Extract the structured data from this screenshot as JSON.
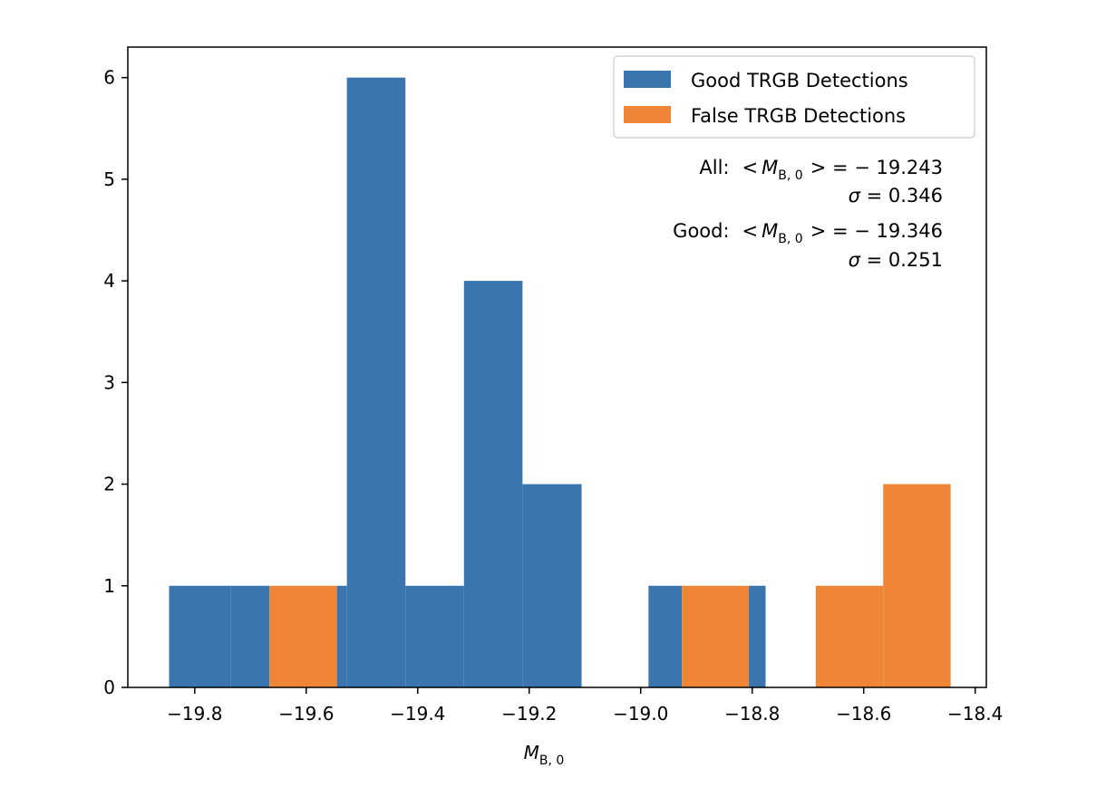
{
  "chart_data": {
    "type": "bar",
    "title": "",
    "xlabel": "M",
    "xlabel_subscript": "B, 0",
    "ylabel": "",
    "xlim": [
      -19.92,
      -18.38
    ],
    "ylim": [
      0,
      6.3
    ],
    "xticks": [
      -19.8,
      -19.6,
      -19.4,
      -19.2,
      -19.0,
      -18.8,
      -18.6,
      -18.4
    ],
    "xtick_labels": [
      "−19.8",
      "−19.6",
      "−19.4",
      "−19.2",
      "−19.0",
      "−18.8",
      "−18.6",
      "−18.4"
    ],
    "yticks": [
      0,
      1,
      2,
      3,
      4,
      5,
      6
    ],
    "ytick_labels": [
      "0",
      "1",
      "2",
      "3",
      "4",
      "5",
      "6"
    ],
    "legend_position": "top-right",
    "series": [
      {
        "name": "Good TRGB Detections",
        "color": "#3a75af",
        "bins": [
          {
            "x0": -19.846,
            "x1": -19.735,
            "value": 1
          },
          {
            "x0": -19.735,
            "x1": -19.666,
            "value": 1
          },
          {
            "x0": -19.545,
            "x1": -19.527,
            "value": 1
          },
          {
            "x0": -19.527,
            "x1": -19.422,
            "value": 6
          },
          {
            "x0": -19.422,
            "x1": -19.317,
            "value": 1
          },
          {
            "x0": -19.317,
            "x1": -19.212,
            "value": 4
          },
          {
            "x0": -19.212,
            "x1": -19.106,
            "value": 2
          },
          {
            "x0": -18.986,
            "x1": -18.926,
            "value": 1
          },
          {
            "x0": -18.806,
            "x1": -18.776,
            "value": 1
          }
        ]
      },
      {
        "name": "False TRGB Detections",
        "color": "#ef8636",
        "bins": [
          {
            "x0": -19.666,
            "x1": -19.545,
            "value": 1
          },
          {
            "x0": -18.926,
            "x1": -18.806,
            "value": 1
          },
          {
            "x0": -18.686,
            "x1": -18.565,
            "value": 1
          },
          {
            "x0": -18.565,
            "x1": -18.444,
            "value": 2
          }
        ]
      }
    ],
    "annotations": {
      "all_label": "All:",
      "all_mean_prefix": "<",
      "all_mean_symbol": "M",
      "all_mean_subscript": "B, 0",
      "all_mean_value": "> = − 19.243",
      "all_sigma_symbol": "σ",
      "all_sigma_value": " = 0.346",
      "good_label": "Good:",
      "good_mean_prefix": "<",
      "good_mean_symbol": "M",
      "good_mean_subscript": "B, 0",
      "good_mean_value": "> = − 19.346",
      "good_sigma_symbol": "σ",
      "good_sigma_value": " = 0.251"
    }
  }
}
